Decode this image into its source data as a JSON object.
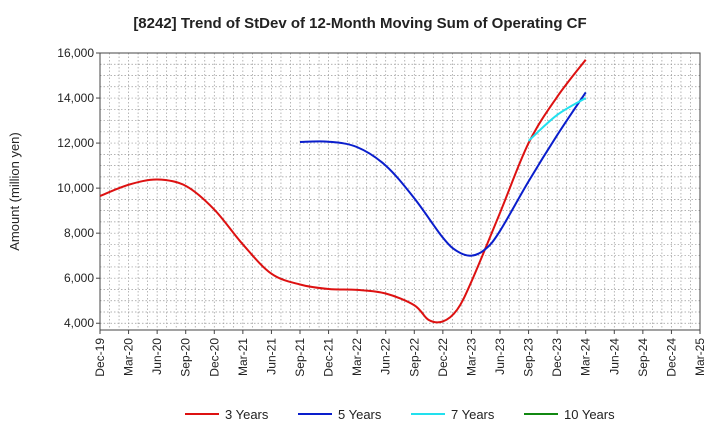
{
  "chart_data": {
    "type": "line",
    "title": "[8242]  Trend of StDev of 12-Month Moving Sum of Operating CF",
    "xlabel": "",
    "ylabel": "Amount (million yen)",
    "ylim": [
      3700,
      16000
    ],
    "yticks": [
      4000,
      6000,
      8000,
      10000,
      12000,
      14000,
      16000
    ],
    "ytick_labels": [
      "4,000",
      "6,000",
      "8,000",
      "10,000",
      "12,000",
      "14,000",
      "16,000"
    ],
    "xticks": [
      "Dec-19",
      "Mar-20",
      "Jun-20",
      "Sep-20",
      "Dec-20",
      "Mar-21",
      "Jun-21",
      "Sep-21",
      "Dec-21",
      "Mar-22",
      "Jun-22",
      "Sep-22",
      "Dec-22",
      "Mar-23",
      "Jun-23",
      "Sep-23",
      "Dec-23",
      "Mar-24",
      "Jun-24",
      "Sep-24",
      "Dec-24",
      "Mar-25"
    ],
    "grid": "dotted",
    "legend_position": "bottom",
    "series": [
      {
        "name": "3 Years",
        "color": "#dd1111",
        "points": [
          [
            0,
            9650
          ],
          [
            1,
            10150
          ],
          [
            2,
            10380
          ],
          [
            3,
            10100
          ],
          [
            4,
            9050
          ],
          [
            5,
            7500
          ],
          [
            6,
            6200
          ],
          [
            7,
            5720
          ],
          [
            8,
            5520
          ],
          [
            9,
            5480
          ],
          [
            10,
            5320
          ],
          [
            11,
            4800
          ],
          [
            11.5,
            4150
          ],
          [
            12,
            4080
          ],
          [
            12.5,
            4600
          ],
          [
            13,
            5850
          ],
          [
            14,
            8900
          ],
          [
            15,
            12000
          ],
          [
            16,
            14050
          ],
          [
            17,
            15700
          ]
        ]
      },
      {
        "name": "5 Years",
        "color": "#0a1ecc",
        "points": [
          [
            7,
            12050
          ],
          [
            8,
            12060
          ],
          [
            9,
            11820
          ],
          [
            10,
            11000
          ],
          [
            11,
            9550
          ],
          [
            12,
            7800
          ],
          [
            12.5,
            7200
          ],
          [
            13,
            7000
          ],
          [
            13.5,
            7300
          ],
          [
            14,
            8100
          ],
          [
            15,
            10300
          ],
          [
            16,
            12350
          ],
          [
            17,
            14250
          ]
        ]
      },
      {
        "name": "7 Years",
        "color": "#22e0ee",
        "points": [
          [
            15,
            12100
          ],
          [
            16,
            13250
          ],
          [
            17,
            14000
          ]
        ]
      },
      {
        "name": "10 Years",
        "color": "#118811",
        "points": []
      }
    ]
  }
}
